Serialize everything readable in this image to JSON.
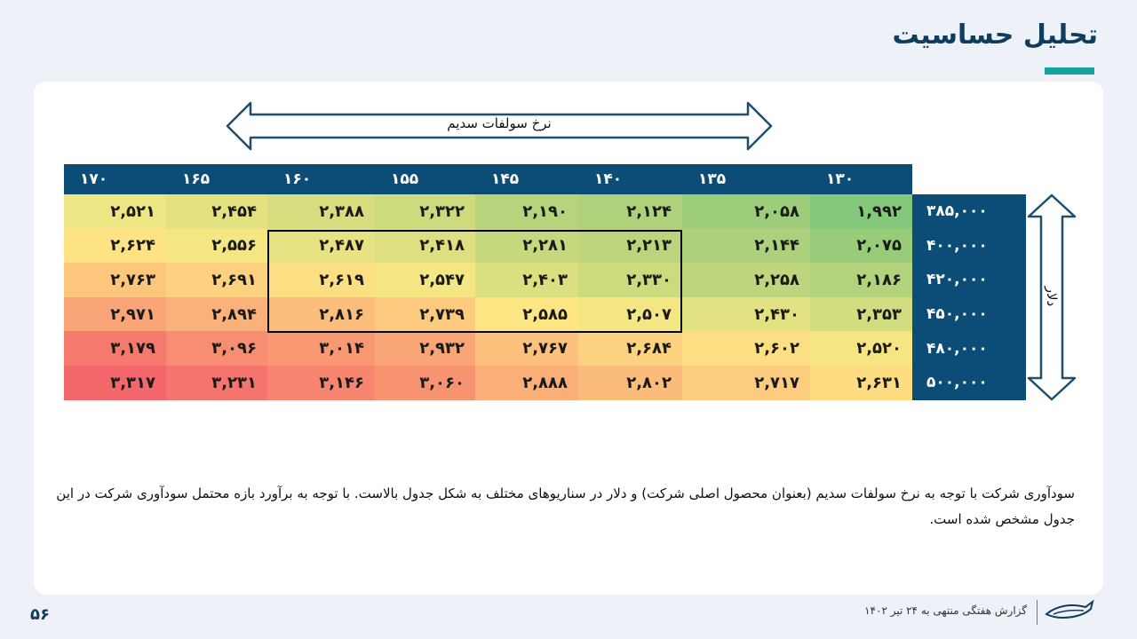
{
  "page_title": "تحلیل حساسیت",
  "arrows": {
    "horizontal_label": "نرخ سولفات سدیم",
    "vertical_label": "دلار"
  },
  "table": {
    "column_headers": [
      "۱۷۰",
      "۱۶۵",
      "۱۶۰",
      "۱۵۵",
      "۱۴۵",
      "۱۴۰",
      "۱۳۵",
      "۱۳۰"
    ],
    "row_headers": [
      "۳۸۵,۰۰۰",
      "۴۰۰,۰۰۰",
      "۴۲۰,۰۰۰",
      "۴۵۰,۰۰۰",
      "۴۸۰,۰۰۰",
      "۵۰۰,۰۰۰"
    ],
    "rows": [
      {
        "values": [
          "۲,۵۲۱",
          "۲,۴۵۴",
          "۲,۳۸۸",
          "۲,۳۲۲",
          "۲,۱۹۰",
          "۲,۱۲۴",
          "۲,۰۵۸",
          "۱,۹۹۲"
        ],
        "colors": [
          "#eee584",
          "#e3e281",
          "#d8de7f",
          "#cdda7e",
          "#b7d47c",
          "#aed17b",
          "#9dcc7a",
          "#84c97b"
        ]
      },
      {
        "values": [
          "۲,۶۲۴",
          "۲,۵۵۶",
          "۲,۴۸۷",
          "۲,۴۱۸",
          "۲,۲۸۱",
          "۲,۲۱۳",
          "۲,۱۴۴",
          "۲,۰۷۵"
        ],
        "colors": [
          "#fde384",
          "#f3e683",
          "#e7e282",
          "#dddf81",
          "#c6d87e",
          "#bcd57d",
          "#acd07c",
          "#98cc7b"
        ]
      },
      {
        "values": [
          "۲,۷۶۳",
          "۲,۶۹۱",
          "۲,۶۱۹",
          "۲,۵۴۷",
          "۲,۴۰۳",
          "۲,۳۳۰",
          "۲,۲۵۸",
          "۲,۱۸۶"
        ],
        "colors": [
          "#fcc67c",
          "#fdd17f",
          "#fddf83",
          "#f3e683",
          "#dadf80",
          "#cddb7f",
          "#c0d67e",
          "#b2d27c"
        ]
      },
      {
        "values": [
          "۲,۹۷۱",
          "۲,۸۹۴",
          "۲,۸۱۶",
          "۲,۷۳۹",
          "۲,۵۸۵",
          "۲,۵۰۷",
          "۲,۴۳۰",
          "۲,۳۵۳"
        ],
        "colors": [
          "#f9a577",
          "#fbb27a",
          "#fbbe7c",
          "#fccb7f",
          "#fde683",
          "#f3e683",
          "#e2e282",
          "#d1dd80"
        ]
      },
      {
        "values": [
          "۳,۱۷۹",
          "۳,۰۹۶",
          "۳,۰۱۴",
          "۲,۹۳۲",
          "۲,۷۶۷",
          "۲,۶۸۴",
          "۲,۶۰۲",
          "۲,۵۲۰"
        ],
        "colors": [
          "#f57a6e",
          "#f78d71",
          "#f89974",
          "#f9a576",
          "#fcc27d",
          "#fdd280",
          "#fddf83",
          "#f5e683"
        ]
      },
      {
        "values": [
          "۳,۳۱۷",
          "۳,۲۳۱",
          "۳,۱۴۶",
          "۳,۰۶۰",
          "۲,۸۸۸",
          "۲,۸۰۲",
          "۲,۷۱۷",
          "۲,۶۳۱"
        ],
        "colors": [
          "#f3676b",
          "#f5746d",
          "#f78570",
          "#f89372",
          "#faae78",
          "#fbbc7b",
          "#fccd7f",
          "#fddc82"
        ]
      }
    ]
  },
  "description": "سودآوری شرکت با توجه به نرخ سولفات سدیم (بعنوان محصول اصلی شرکت) و دلار در سناریوهای مختلف به شکل جدول بالاست. با توجه به برآورد بازه محتمل سودآوری شرکت در این جدول مشخص شده است.",
  "footer": {
    "page_number": "۵۶",
    "report_text": "گزارش هفتگی منتهی به ۲۴ تیر ۱۴۰۲"
  },
  "colors": {
    "header_bg": "#0c4d78",
    "title": "#0f3d5c",
    "accent": "#17a2a2"
  }
}
